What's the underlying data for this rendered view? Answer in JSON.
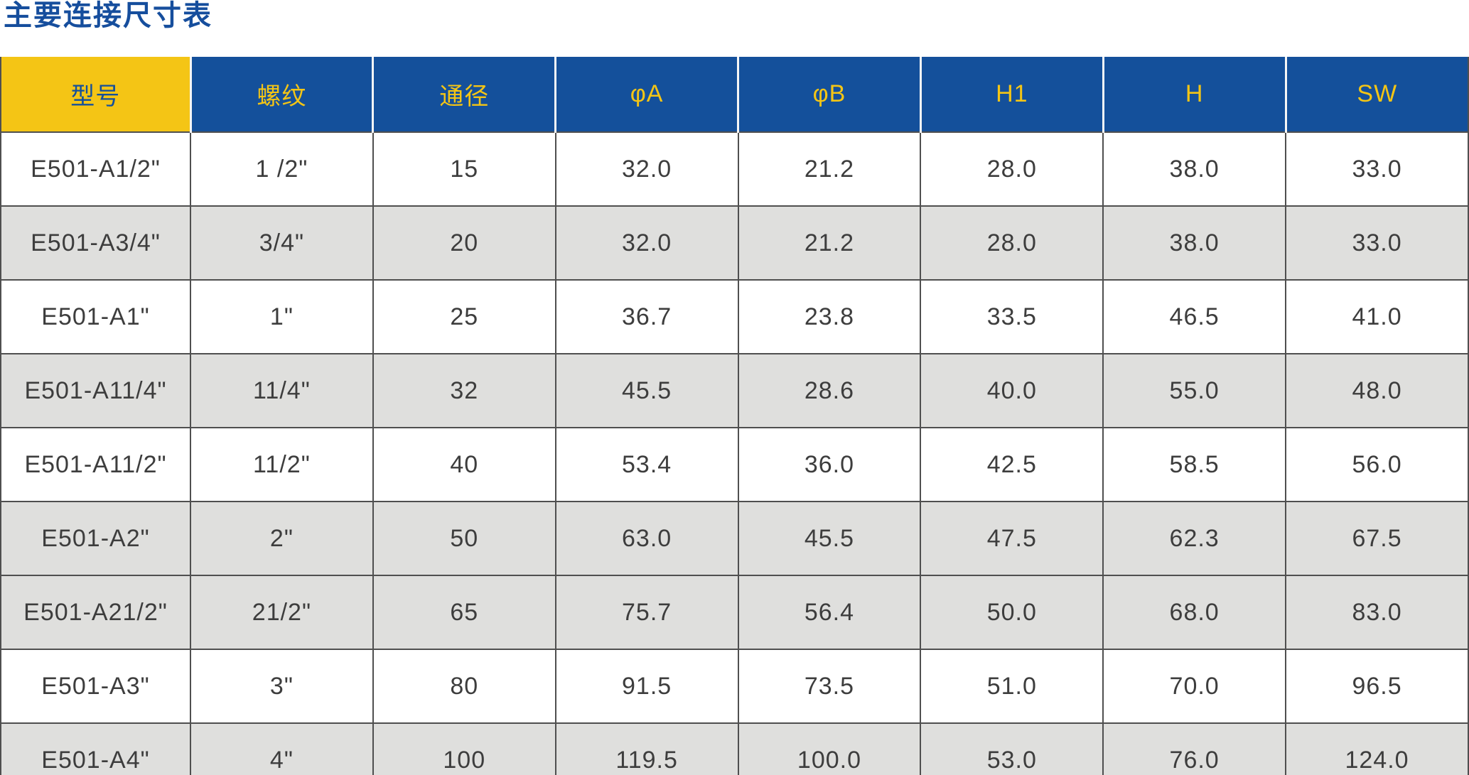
{
  "page": {
    "title": "主要连接尺寸表"
  },
  "table": {
    "columns": [
      "型号",
      "螺纹",
      "通径",
      "φA",
      "φB",
      "H1",
      "H",
      "SW"
    ],
    "rows": [
      {
        "shaded": false,
        "cells": [
          "E501-A1/2\"",
          "1 /2\"",
          "15",
          "32.0",
          "21.2",
          "28.0",
          "38.0",
          "33.0"
        ]
      },
      {
        "shaded": true,
        "cells": [
          "E501-A3/4\"",
          "3/4\"",
          "20",
          "32.0",
          "21.2",
          "28.0",
          "38.0",
          "33.0"
        ]
      },
      {
        "shaded": false,
        "cells": [
          "E501-A1\"",
          "1\"",
          "25",
          "36.7",
          "23.8",
          "33.5",
          "46.5",
          "41.0"
        ]
      },
      {
        "shaded": true,
        "cells": [
          "E501-A11/4\"",
          "11/4\"",
          "32",
          "45.5",
          "28.6",
          "40.0",
          "55.0",
          "48.0"
        ]
      },
      {
        "shaded": false,
        "cells": [
          "E501-A11/2\"",
          "11/2\"",
          "40",
          "53.4",
          "36.0",
          "42.5",
          "58.5",
          "56.0"
        ]
      },
      {
        "shaded": true,
        "cells": [
          "E501-A2\"",
          "2\"",
          "50",
          "63.0",
          "45.5",
          "47.5",
          "62.3",
          "67.5"
        ]
      },
      {
        "shaded": true,
        "cells": [
          "E501-A21/2\"",
          "21/2\"",
          "65",
          "75.7",
          "56.4",
          "50.0",
          "68.0",
          "83.0"
        ]
      },
      {
        "shaded": false,
        "cells": [
          "E501-A3\"",
          "3\"",
          "80",
          "91.5",
          "73.5",
          "51.0",
          "70.0",
          "96.5"
        ]
      },
      {
        "shaded": true,
        "cells": [
          "E501-A4\"",
          "4\"",
          "100",
          "119.5",
          "100.0",
          "53.0",
          "76.0",
          "124.0"
        ]
      }
    ]
  },
  "colors": {
    "title_blue": "#164e9d",
    "header_blue": "#14509b",
    "gold": "#f4c515",
    "row_gray": "#dfdfdd",
    "grid": "#4f4f4f",
    "body_text": "#3d3d3d"
  }
}
